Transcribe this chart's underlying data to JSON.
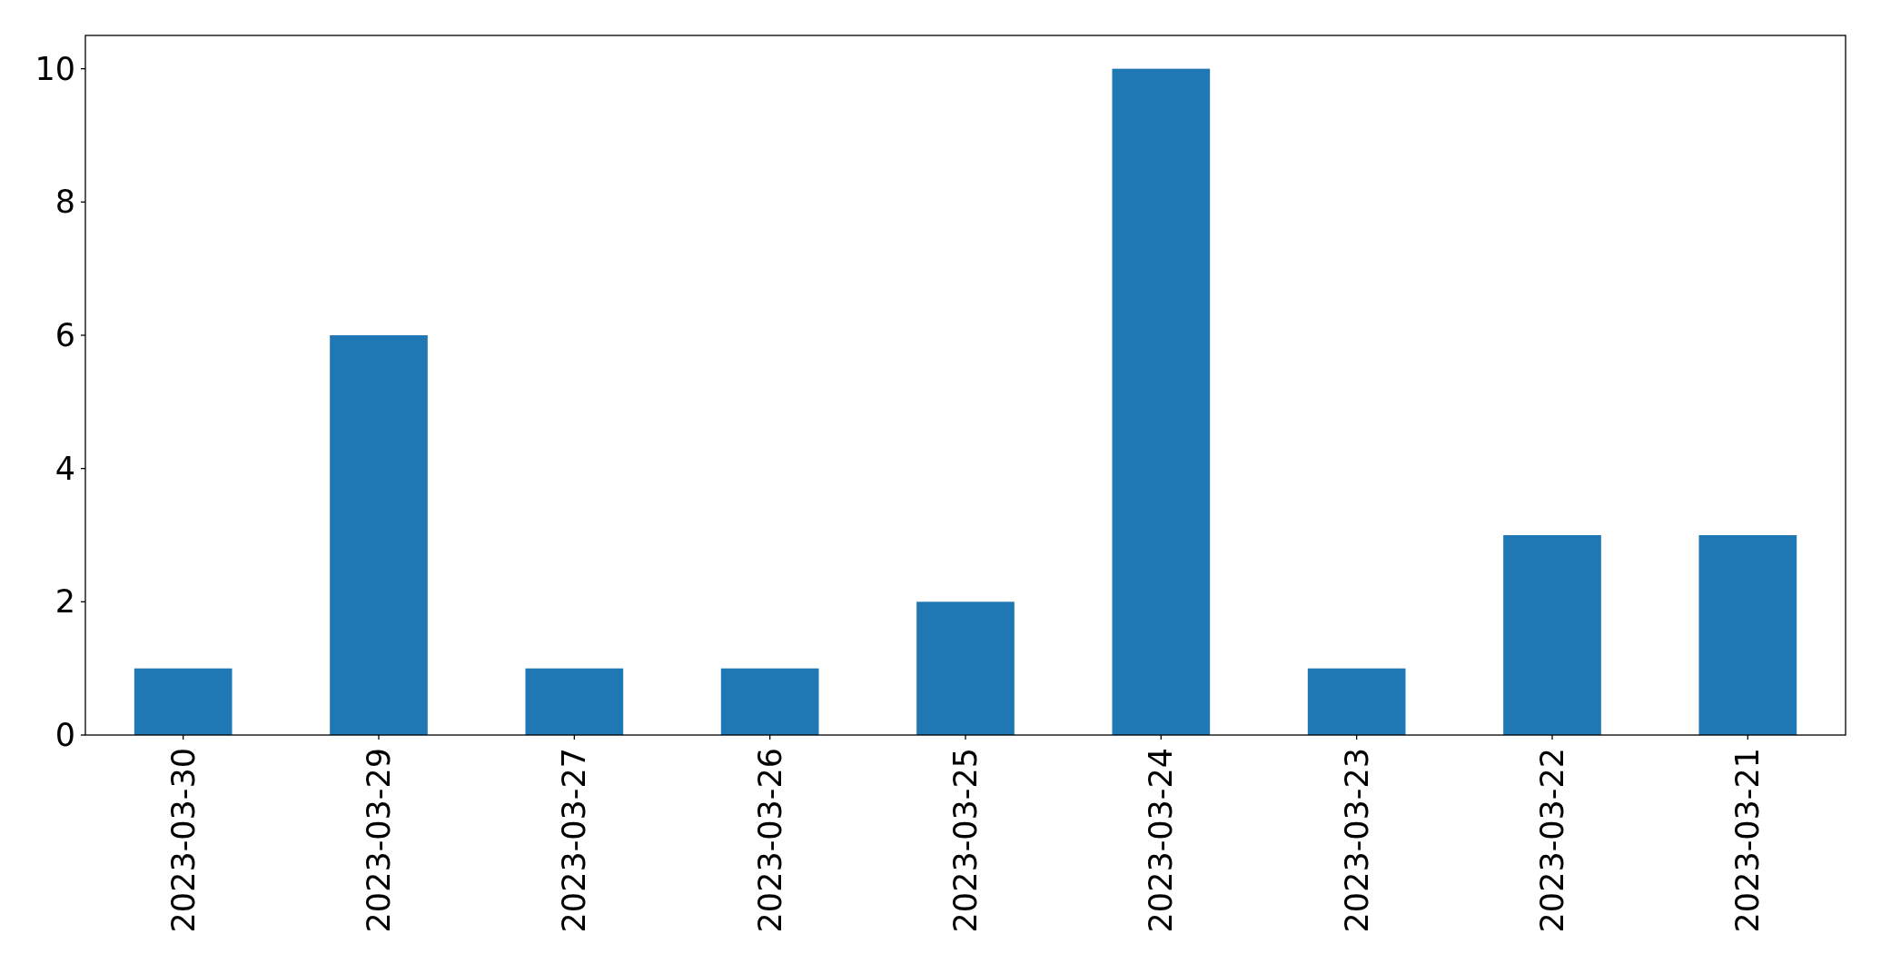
{
  "chart_data": {
    "type": "bar",
    "categories": [
      "2023-03-30",
      "2023-03-29",
      "2023-03-27",
      "2023-03-26",
      "2023-03-25",
      "2023-03-24",
      "2023-03-23",
      "2023-03-22",
      "2023-03-21"
    ],
    "values": [
      1,
      6,
      1,
      1,
      2,
      10,
      1,
      3,
      3
    ],
    "color": "#1f77b4",
    "ylim": [
      0,
      10.5
    ],
    "yticks": [
      0,
      2,
      4,
      6,
      8,
      10
    ]
  }
}
